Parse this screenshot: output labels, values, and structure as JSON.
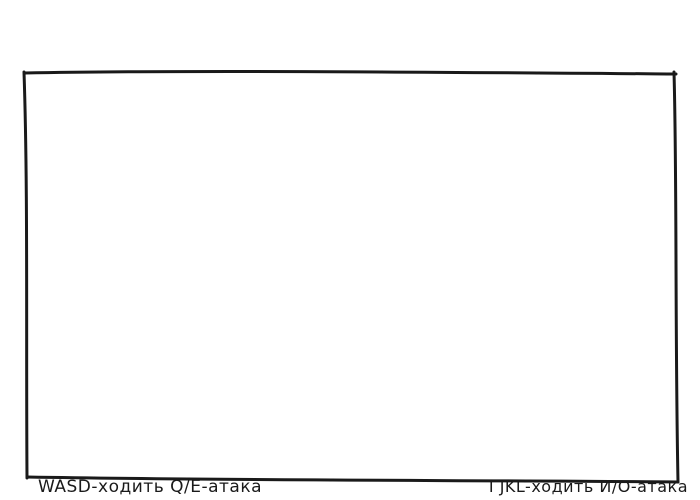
{
  "colors": {
    "background": "#ffffff",
    "border": "#1a1a1a",
    "text": "#1a1a1a"
  },
  "arena": {
    "border_style": "hand-drawn"
  },
  "controls": {
    "player1": "WASD-ходить Q/E-атака",
    "player2": "I JKL-ходить И/О-атака"
  }
}
